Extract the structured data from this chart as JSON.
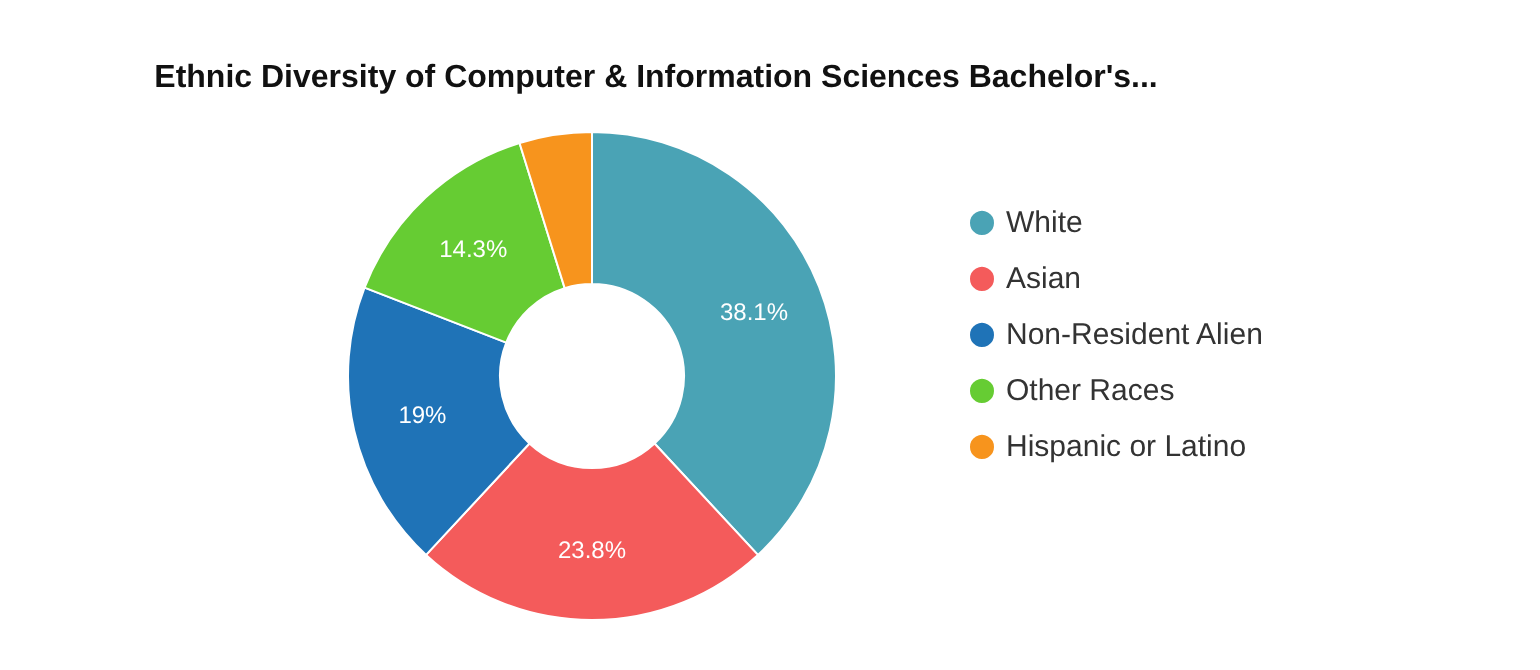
{
  "chart_data": {
    "type": "donut",
    "title": "Ethnic Diversity of Computer & Information Sciences Bachelor's...",
    "categories": [
      "White",
      "Asian",
      "Non-Resident Alien",
      "Other Races",
      "Hispanic or Latino"
    ],
    "values": [
      38.1,
      23.8,
      19,
      14.3,
      4.8
    ],
    "value_labels": [
      "38.1%",
      "23.8%",
      "19%",
      "14.3%",
      null
    ],
    "colors": [
      "#4aa3b5",
      "#f45b5b",
      "#1f73b7",
      "#66cc33",
      "#f7941d"
    ],
    "legend": "right"
  }
}
